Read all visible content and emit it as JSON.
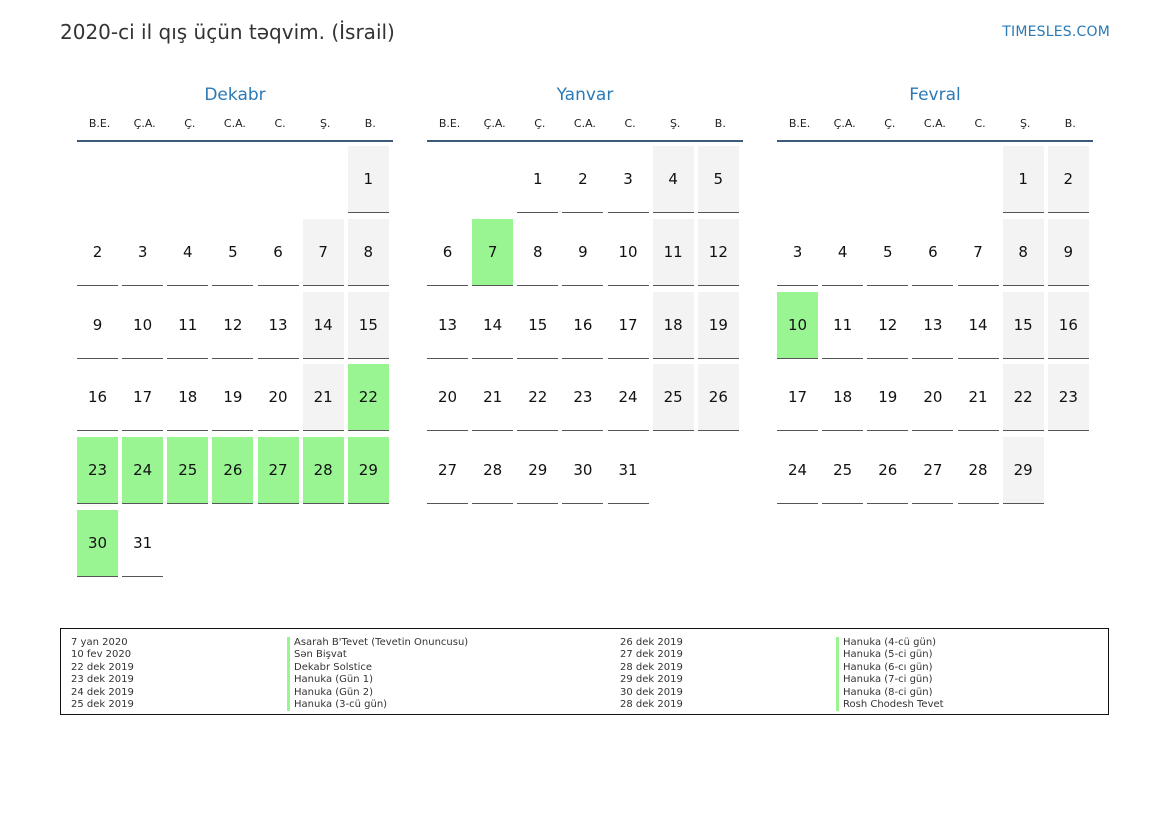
{
  "title": "2020-ci il qış üçün təqvim. (İsrail)",
  "site": "TIMESLES.COM",
  "colors": {
    "accent": "#2a7ab6",
    "holiday": "#99f592",
    "weekend": "#f3f3f3"
  },
  "weekdays": [
    "B.E.",
    "Ç.A.",
    "Ç.",
    "C.A.",
    "C.",
    "Ş.",
    "B."
  ],
  "months": [
    {
      "name": "Dekabr",
      "first_weekday": 6,
      "days": 31,
      "holidays": [
        22,
        23,
        24,
        25,
        26,
        27,
        28,
        29,
        30
      ]
    },
    {
      "name": "Yanvar",
      "first_weekday": 2,
      "days": 31,
      "holidays": [
        7
      ]
    },
    {
      "name": "Fevral",
      "first_weekday": 5,
      "days": 29,
      "holidays": [
        10
      ]
    }
  ],
  "legend": [
    {
      "date": "7 yan 2020",
      "name": "Asarah B'Tevet (Tevetin Onuncusu)"
    },
    {
      "date": "10 fev 2020",
      "name": "Sən Bişvat"
    },
    {
      "date": "22 dek 2019",
      "name": "Dekabr Solstice"
    },
    {
      "date": "23 dek 2019",
      "name": "Hanuka (Gün 1)"
    },
    {
      "date": "24 dek 2019",
      "name": "Hanuka (Gün 2)"
    },
    {
      "date": "25 dek 2019",
      "name": "Hanuka (3-cü gün)"
    },
    {
      "date": "26 dek 2019",
      "name": "Hanuka (4-cü gün)"
    },
    {
      "date": "27 dek 2019",
      "name": "Hanuka (5-ci gün)"
    },
    {
      "date": "28 dek 2019",
      "name": "Hanuka (6-cı gün)"
    },
    {
      "date": "29 dek 2019",
      "name": "Hanuka (7-ci gün)"
    },
    {
      "date": "30 dek 2019",
      "name": "Hanuka (8-ci gün)"
    },
    {
      "date": "28 dek 2019",
      "name": "Rosh Chodesh Tevet"
    }
  ]
}
